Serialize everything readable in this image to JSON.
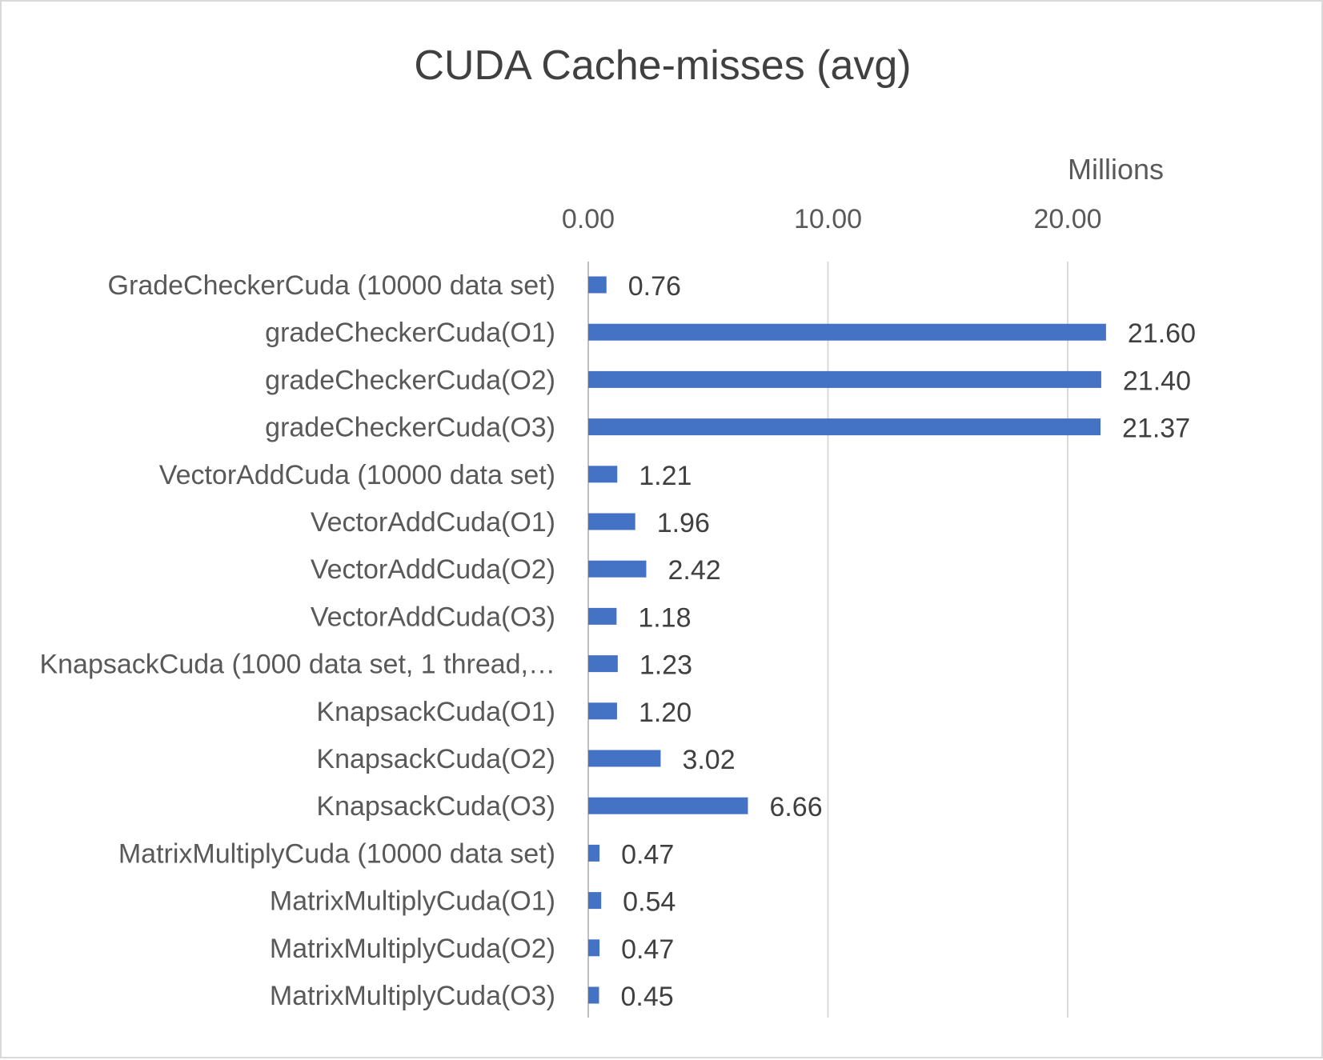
{
  "chart_data": {
    "type": "bar",
    "orientation": "horizontal",
    "title": "CUDA Cache-misses (avg)",
    "axis_unit_label": "Millions",
    "xlim": [
      0,
      25
    ],
    "x_ticks": [
      "0.00",
      "10.00",
      "20.00"
    ],
    "x_tick_values": [
      0,
      10,
      20
    ],
    "x_axis_position": "top",
    "grid": true,
    "legend": "none",
    "bar_color": "#4472c4",
    "categories": [
      "GradeCheckerCuda (10000 data set)",
      "gradeCheckerCuda(O1)",
      "gradeCheckerCuda(O2)",
      "gradeCheckerCuda(O3)",
      "VectorAddCuda (10000 data set)",
      "VectorAddCuda(O1)",
      "VectorAddCuda(O2)",
      "VectorAddCuda(O3)",
      "KnapsackCuda (1000 data set, 1 thread,…",
      "KnapsackCuda(O1)",
      "KnapsackCuda(O2)",
      "KnapsackCuda(O3)",
      "MatrixMultiplyCuda (10000 data set)",
      "MatrixMultiplyCuda(O1)",
      "MatrixMultiplyCuda(O2)",
      "MatrixMultiplyCuda(O3)"
    ],
    "values": [
      0.76,
      21.6,
      21.4,
      21.37,
      1.21,
      1.96,
      2.42,
      1.18,
      1.23,
      1.2,
      3.02,
      6.66,
      0.47,
      0.54,
      0.47,
      0.45
    ],
    "value_labels": [
      "0.76",
      "21.60",
      "21.40",
      "21.37",
      "1.21",
      "1.96",
      "2.42",
      "1.18",
      "1.23",
      "1.20",
      "3.02",
      "6.66",
      "0.47",
      "0.54",
      "0.47",
      "0.45"
    ]
  }
}
